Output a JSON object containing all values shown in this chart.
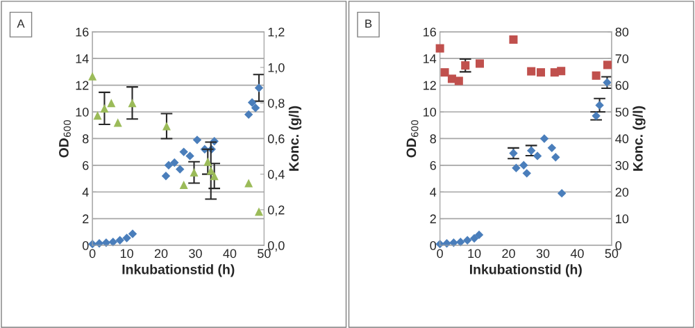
{
  "chart_data": [
    {
      "type": "scatter",
      "title": "A",
      "xlabel": "Inkubationstid (h)",
      "ylabel": "OD$_{600}$",
      "y2label": "Konc. (g/l)",
      "xlim": [
        0,
        50
      ],
      "xticks": [
        0,
        10,
        20,
        30,
        40,
        50
      ],
      "ylim": [
        0,
        16
      ],
      "yticks": [
        0,
        2,
        4,
        6,
        8,
        10,
        12,
        14,
        16
      ],
      "y2lim": [
        0,
        1.2
      ],
      "y2ticks": [
        {
          "value": 0,
          "label": "0,0"
        },
        {
          "value": 0.2,
          "label": "0,2"
        },
        {
          "value": 0.4,
          "label": "0,4"
        },
        {
          "value": 0.6,
          "label": "0,6"
        },
        {
          "value": 0.8,
          "label": "0,8"
        },
        {
          "value": 1.0,
          "label": "1,0"
        },
        {
          "value": 1.2,
          "label": "1,2"
        }
      ],
      "grid": "y",
      "series": [
        {
          "marker": "diamond",
          "color": "#4a7ebb",
          "x": [
            0,
            2,
            4,
            6,
            8,
            10,
            11.7,
            21.4,
            22.2,
            23.9,
            25.5,
            26.6,
            28.4,
            30.5,
            32.7,
            34.7,
            35.5,
            45.5,
            46.5,
            47.5,
            48.5
          ],
          "values": [
            0.1,
            0.15,
            0.2,
            0.25,
            0.38,
            0.55,
            0.86,
            5.2,
            6.0,
            6.2,
            5.7,
            7.0,
            6.7,
            7.9,
            7.2,
            7.2,
            7.8,
            9.8,
            10.7,
            10.3,
            11.8
          ],
          "errors": [
            null,
            null,
            null,
            null,
            null,
            null,
            null,
            null,
            null,
            null,
            null,
            null,
            null,
            null,
            null,
            null,
            null,
            null,
            null,
            null,
            1.0
          ]
        },
        {
          "marker": "triangle",
          "color": "#9bbb59",
          "axis": "y2",
          "x": [
            0,
            1.5,
            3.5,
            5.5,
            7.4,
            11.6,
            21.6,
            26.6,
            29.6,
            33.6,
            34.5,
            35.5,
            45.5,
            48.5
          ],
          "values": [
            0.95,
            0.73,
            0.77,
            0.8,
            0.69,
            0.8,
            0.67,
            0.34,
            0.41,
            0.47,
            0.42,
            0.39,
            0.35,
            0.19
          ],
          "errors": [
            null,
            null,
            0.09,
            null,
            null,
            0.09,
            0.07,
            null,
            0.06,
            0.07,
            0.16,
            0.07,
            null,
            null
          ]
        }
      ]
    },
    {
      "type": "scatter",
      "title": "B",
      "xlabel": "Inkubationstid (h)",
      "ylabel": "OD$_{600}$",
      "y2label": "Konc. (g/l)",
      "xlim": [
        0,
        50
      ],
      "xticks": [
        0,
        10,
        20,
        30,
        40,
        50
      ],
      "ylim": [
        0,
        16
      ],
      "yticks": [
        0,
        2,
        4,
        6,
        8,
        10,
        12,
        14,
        16
      ],
      "y2lim": [
        0,
        80
      ],
      "y2ticks": [
        0,
        10,
        20,
        30,
        40,
        50,
        60,
        70,
        80
      ],
      "grid": "y",
      "series": [
        {
          "marker": "diamond",
          "color": "#4a7ebb",
          "x": [
            0,
            2,
            4,
            6,
            8,
            10,
            11.4,
            21.4,
            22.2,
            24.4,
            25.3,
            26.6,
            28.4,
            30.4,
            32.6,
            33.7,
            35.5,
            45.5,
            46.5,
            48.7
          ],
          "values": [
            0.1,
            0.15,
            0.2,
            0.25,
            0.38,
            0.52,
            0.79,
            6.9,
            5.8,
            6.0,
            5.4,
            7.1,
            6.7,
            8.0,
            7.3,
            6.6,
            3.9,
            9.7,
            10.5,
            12.2
          ],
          "errors": [
            null,
            null,
            null,
            null,
            null,
            null,
            null,
            0.4,
            null,
            null,
            null,
            0.38,
            null,
            null,
            null,
            null,
            null,
            0.3,
            0.5,
            0.43
          ]
        },
        {
          "marker": "square",
          "color": "#c0504d",
          "axis": "y2",
          "x": [
            0,
            1.4,
            3.5,
            5.5,
            7.4,
            11.6,
            21.4,
            26.6,
            29.4,
            33.4,
            35.3,
            45.5,
            48.8
          ],
          "values": [
            73.8,
            64.8,
            62.4,
            61.6,
            67.4,
            68.1,
            77.1,
            65.2,
            64.8,
            64.8,
            65.3,
            63.6,
            67.6
          ],
          "errors": [
            null,
            null,
            null,
            null,
            2.4,
            null,
            null,
            null,
            null,
            null,
            null,
            null,
            null
          ]
        }
      ]
    }
  ]
}
